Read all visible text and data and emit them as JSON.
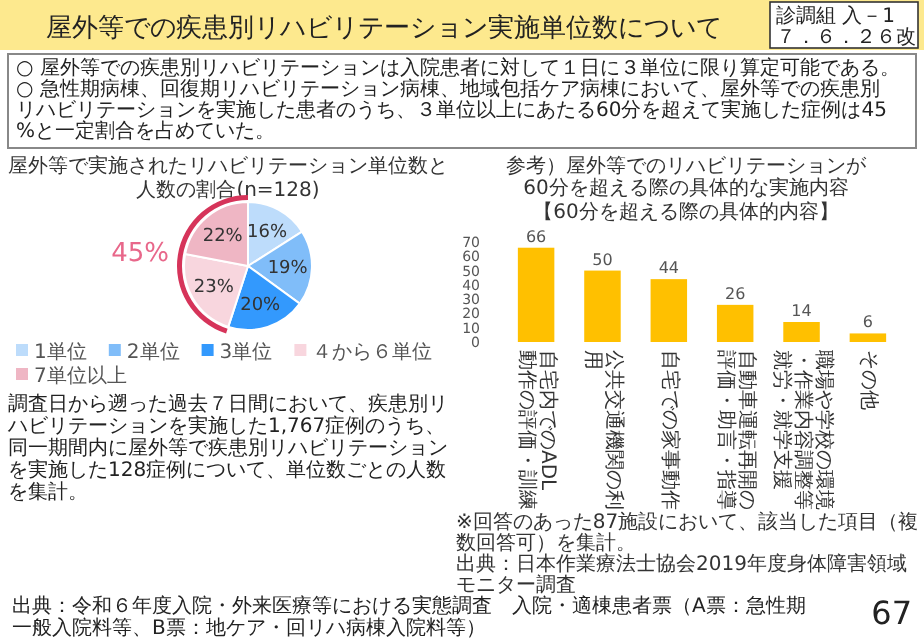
{
  "chart_data": [
    {
      "type": "other",
      "title": "屋外等での疾患別リハビリテーション実施単位数について",
      "annotations": [
        "診調組 入－1",
        "７．６．２６改",
        "○ 屋外等での疾患別リハビリテーションは入院患者に対して１日に３単位に限り算定可能である。",
        "○ 急性期病棟、回復期リハビリテーション病棟、地域包括ケア病棟において、屋外等での疾患別リハビリテーションを実施した患者のうち、３単位以上にあたる60分を超えて実施した症例は45%と一定割合を占めていた。",
        "出典：令和６年度入院・外来医療等における実態調査　入院・適棟患者票（A票：急性期一般入院料等、B票：地ケア・回リハ病棟入院料等）",
        "67"
      ]
    },
    {
      "type": "pie",
      "title": "屋外等で実施されたリハビリテーション単位数と",
      "subtitle": "人数の割合(n=128)",
      "categories": [
        "1単位",
        "2単位",
        "3単位",
        "４から６単位",
        "7単位以上"
      ],
      "values": [
        16,
        19,
        20,
        23,
        22
      ],
      "value_labels": [
        "16%",
        "19%",
        "20%",
        "23%",
        "22%"
      ],
      "colors": [
        "#bddcfb",
        "#80bdf9",
        "#3399fd",
        "#f8d6de",
        "#efb6c4"
      ],
      "legend": "bottom",
      "annotations": [
        "45%",
        "調査日から遡った過去７日間において、疾患別リハビリテーションを実施した1,767症例のうち、同一期間内に屋外等で疾患別リハビリテーションを実施した128症例について、単位数ごとの人数を集計。"
      ]
    },
    {
      "type": "bar",
      "title": "参考）屋外等でのリハビリテーションが60分を超える際の具体的な実施内容",
      "subtitle": "【60分を超える際の具体的内容】",
      "categories": [
        "自宅内でのADL動作の評価・訓練",
        "公共交通機関の利用",
        "自宅での家事動作",
        "自動車運転再開の評価・助言・指導",
        "職場や学校の環境・作業内容調整等就労・就学支援",
        "その他"
      ],
      "values": [
        66,
        50,
        44,
        26,
        14,
        6
      ],
      "color": "#ffc000",
      "ylim": [
        0,
        70
      ],
      "yticks": [
        0,
        10,
        20,
        30,
        40,
        50,
        60,
        70
      ],
      "data_labels": true,
      "annotations": [
        "※回答のあった87施設において、該当した項目（複数回答可）を集計。",
        "出典：日本作業療法士協会2019年度身体障害領域モニター調査"
      ]
    }
  ]
}
